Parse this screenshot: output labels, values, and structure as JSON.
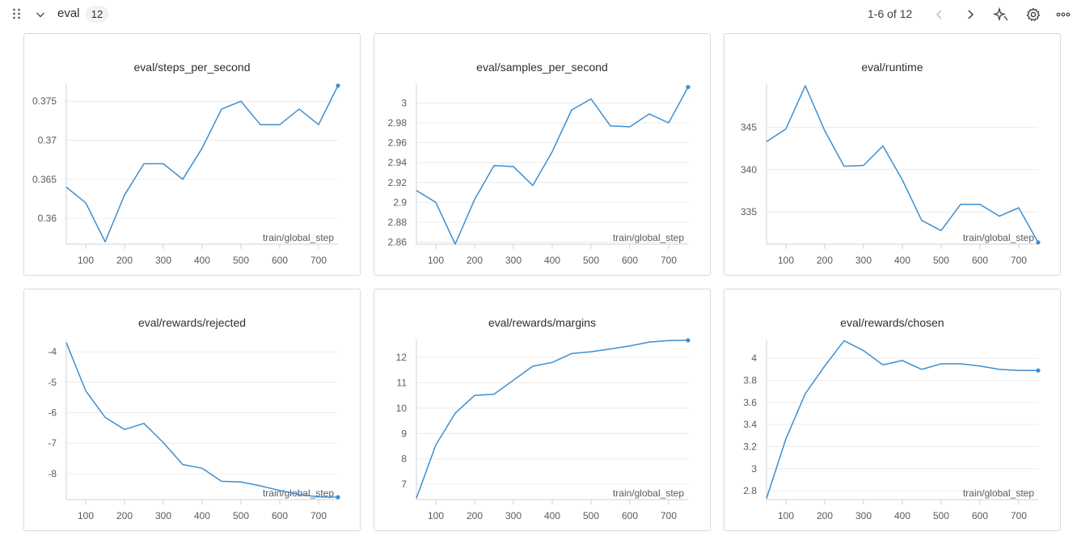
{
  "header": {
    "section_name": "eval",
    "count": "12",
    "pagination": "1-6 of 12",
    "icons": [
      "drag-handle-icon",
      "chevron-down-icon",
      "chevron-left-icon",
      "chevron-right-icon",
      "sparkle-icon",
      "gear-icon",
      "more-icon"
    ]
  },
  "colors": {
    "line": "#3d8fd0",
    "grid": "#ececee",
    "axis": "#cfd2d6"
  },
  "chart_data": [
    {
      "type": "line",
      "title": "eval/steps_per_second",
      "xlabel": "train/global_step",
      "xlim": [
        50,
        750
      ],
      "ylim": [
        0.3567,
        0.3772
      ],
      "xticks": [
        100,
        200,
        300,
        400,
        500,
        600,
        700
      ],
      "yticks": [
        0.36,
        0.365,
        0.37,
        0.375
      ],
      "ytick_labels": [
        "0.36",
        "0.365",
        "0.37",
        "0.375"
      ],
      "x": [
        50,
        100,
        150,
        200,
        250,
        300,
        350,
        400,
        450,
        500,
        550,
        600,
        650,
        700,
        750
      ],
      "y": [
        0.364,
        0.362,
        0.357,
        0.363,
        0.367,
        0.367,
        0.365,
        0.369,
        0.374,
        0.375,
        0.372,
        0.372,
        0.374,
        0.372,
        0.377
      ]
    },
    {
      "type": "line",
      "title": "eval/samples_per_second",
      "xlabel": "train/global_step",
      "xlim": [
        50,
        750
      ],
      "ylim": [
        2.858,
        3.019
      ],
      "xticks": [
        100,
        200,
        300,
        400,
        500,
        600,
        700
      ],
      "yticks": [
        2.86,
        2.88,
        2.9,
        2.92,
        2.94,
        2.96,
        2.98,
        3
      ],
      "ytick_labels": [
        "2.86",
        "2.88",
        "2.9",
        "2.92",
        "2.94",
        "2.96",
        "2.98",
        "3"
      ],
      "x": [
        50,
        100,
        150,
        200,
        250,
        300,
        350,
        400,
        450,
        500,
        550,
        600,
        650,
        700,
        750
      ],
      "y": [
        2.912,
        2.9,
        2.858,
        2.903,
        2.937,
        2.936,
        2.917,
        2.951,
        2.993,
        3.004,
        2.977,
        2.976,
        2.989,
        2.98,
        3.016
      ]
    },
    {
      "type": "line",
      "title": "eval/runtime",
      "xlabel": "train/global_step",
      "xlim": [
        50,
        750
      ],
      "ylim": [
        331.2,
        350.1
      ],
      "xticks": [
        100,
        200,
        300,
        400,
        500,
        600,
        700
      ],
      "yticks": [
        335,
        340,
        345
      ],
      "ytick_labels": [
        "335",
        "340",
        "345"
      ],
      "x": [
        50,
        100,
        150,
        200,
        250,
        300,
        350,
        400,
        450,
        500,
        550,
        600,
        650,
        700,
        750
      ],
      "y": [
        343.3,
        344.8,
        349.9,
        344.6,
        340.4,
        340.5,
        342.8,
        338.8,
        334.0,
        332.8,
        335.9,
        335.9,
        334.5,
        335.5,
        331.4
      ]
    },
    {
      "type": "line",
      "title": "eval/rewards/rejected",
      "xlabel": "train/global_step",
      "xlim": [
        50,
        750
      ],
      "ylim": [
        -8.85,
        -3.6
      ],
      "xticks": [
        100,
        200,
        300,
        400,
        500,
        600,
        700
      ],
      "yticks": [
        -8,
        -7,
        -6,
        -5,
        -4
      ],
      "ytick_labels": [
        "-8",
        "-7",
        "-6",
        "-5",
        "-4"
      ],
      "x": [
        50,
        100,
        150,
        200,
        250,
        300,
        350,
        400,
        450,
        500,
        550,
        600,
        650,
        700,
        750
      ],
      "y": [
        -3.7,
        -5.28,
        -6.15,
        -6.55,
        -6.35,
        -6.98,
        -7.7,
        -7.82,
        -8.25,
        -8.27,
        -8.4,
        -8.55,
        -8.68,
        -8.76,
        -8.77
      ]
    },
    {
      "type": "line",
      "title": "eval/rewards/margins",
      "xlabel": "train/global_step",
      "xlim": [
        50,
        750
      ],
      "ylim": [
        6.4,
        12.7
      ],
      "xticks": [
        100,
        200,
        300,
        400,
        500,
        600,
        700
      ],
      "yticks": [
        7,
        8,
        9,
        10,
        11,
        12
      ],
      "ytick_labels": [
        "7",
        "8",
        "9",
        "10",
        "11",
        "12"
      ],
      "x": [
        50,
        100,
        150,
        200,
        250,
        300,
        350,
        400,
        450,
        500,
        550,
        600,
        650,
        700,
        750
      ],
      "y": [
        6.45,
        8.55,
        9.8,
        10.5,
        10.55,
        11.1,
        11.65,
        11.8,
        12.15,
        12.22,
        12.33,
        12.45,
        12.6,
        12.66,
        12.67
      ]
    },
    {
      "type": "line",
      "title": "eval/rewards/chosen",
      "xlabel": "train/global_step",
      "xlim": [
        50,
        750
      ],
      "ylim": [
        2.72,
        4.17
      ],
      "xticks": [
        100,
        200,
        300,
        400,
        500,
        600,
        700
      ],
      "yticks": [
        2.8,
        3,
        3.2,
        3.4,
        3.6,
        3.8,
        4
      ],
      "ytick_labels": [
        "2.8",
        "3",
        "3.2",
        "3.4",
        "3.6",
        "3.8",
        "4"
      ],
      "x": [
        50,
        100,
        150,
        200,
        250,
        300,
        350,
        400,
        450,
        500,
        550,
        600,
        650,
        700,
        750
      ],
      "y": [
        2.73,
        3.27,
        3.68,
        3.93,
        4.16,
        4.07,
        3.94,
        3.98,
        3.9,
        3.95,
        3.95,
        3.93,
        3.9,
        3.89,
        3.89
      ]
    }
  ]
}
